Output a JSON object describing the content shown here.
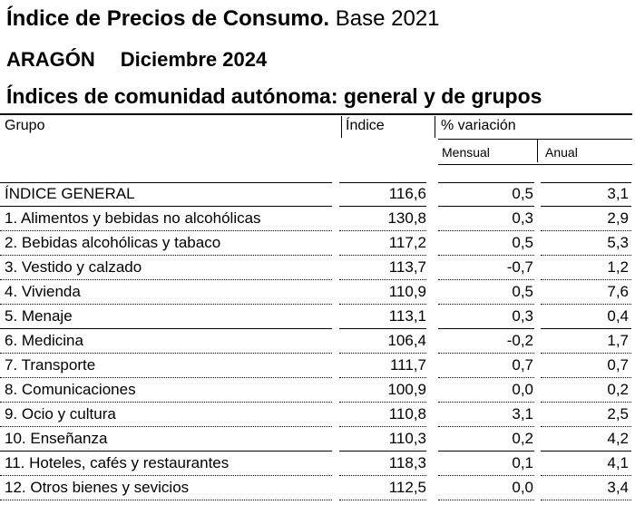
{
  "header": {
    "title_bold": "Índice de Precios de Consumo.",
    "title_rest": " Base 2021",
    "region": "ARAGÓN",
    "date": "Diciembre 2024",
    "subtitle": "Índices de comunidad autónoma: general y de grupos"
  },
  "table": {
    "columns": {
      "grupo": "Grupo",
      "indice": "Índice",
      "variacion": "% variación",
      "mensual": "Mensual",
      "anual": "Anual"
    },
    "rows": [
      {
        "grupo": "ÍNDICE GENERAL",
        "indice": "116,6",
        "mensual": "0,5",
        "anual": "3,1"
      },
      {
        "grupo": "1. Alimentos y bebidas no alcohólicas",
        "indice": "130,8",
        "mensual": "0,3",
        "anual": "2,9"
      },
      {
        "grupo": "2. Bebidas alcohólicas y tabaco",
        "indice": "117,2",
        "mensual": "0,5",
        "anual": "5,3"
      },
      {
        "grupo": "3. Vestido y calzado",
        "indice": "113,7",
        "mensual": "-0,7",
        "anual": "1,2"
      },
      {
        "grupo": "4. Vivienda",
        "indice": "110,9",
        "mensual": "0,5",
        "anual": "7,6"
      },
      {
        "grupo": "5. Menaje",
        "indice": "113,1",
        "mensual": "0,3",
        "anual": "0,4"
      },
      {
        "grupo": "6. Medicina",
        "indice": "106,4",
        "mensual": "-0,2",
        "anual": "1,7"
      },
      {
        "grupo": "7. Transporte",
        "indice": "111,7",
        "mensual": "0,7",
        "anual": "0,7"
      },
      {
        "grupo": "8. Comunicaciones",
        "indice": "100,9",
        "mensual": "0,0",
        "anual": "0,2"
      },
      {
        "grupo": "9. Ocio y cultura",
        "indice": "110,8",
        "mensual": "3,1",
        "anual": "2,5"
      },
      {
        "grupo": "10. Enseñanza",
        "indice": "110,3",
        "mensual": "0,2",
        "anual": "4,2"
      },
      {
        "grupo": "11. Hoteles, cafés y restaurantes",
        "indice": "118,3",
        "mensual": "0,1",
        "anual": "4,1"
      },
      {
        "grupo": "12. Otros bienes y sevicios",
        "indice": "112,5",
        "mensual": "0,0",
        "anual": "3,4"
      }
    ]
  }
}
